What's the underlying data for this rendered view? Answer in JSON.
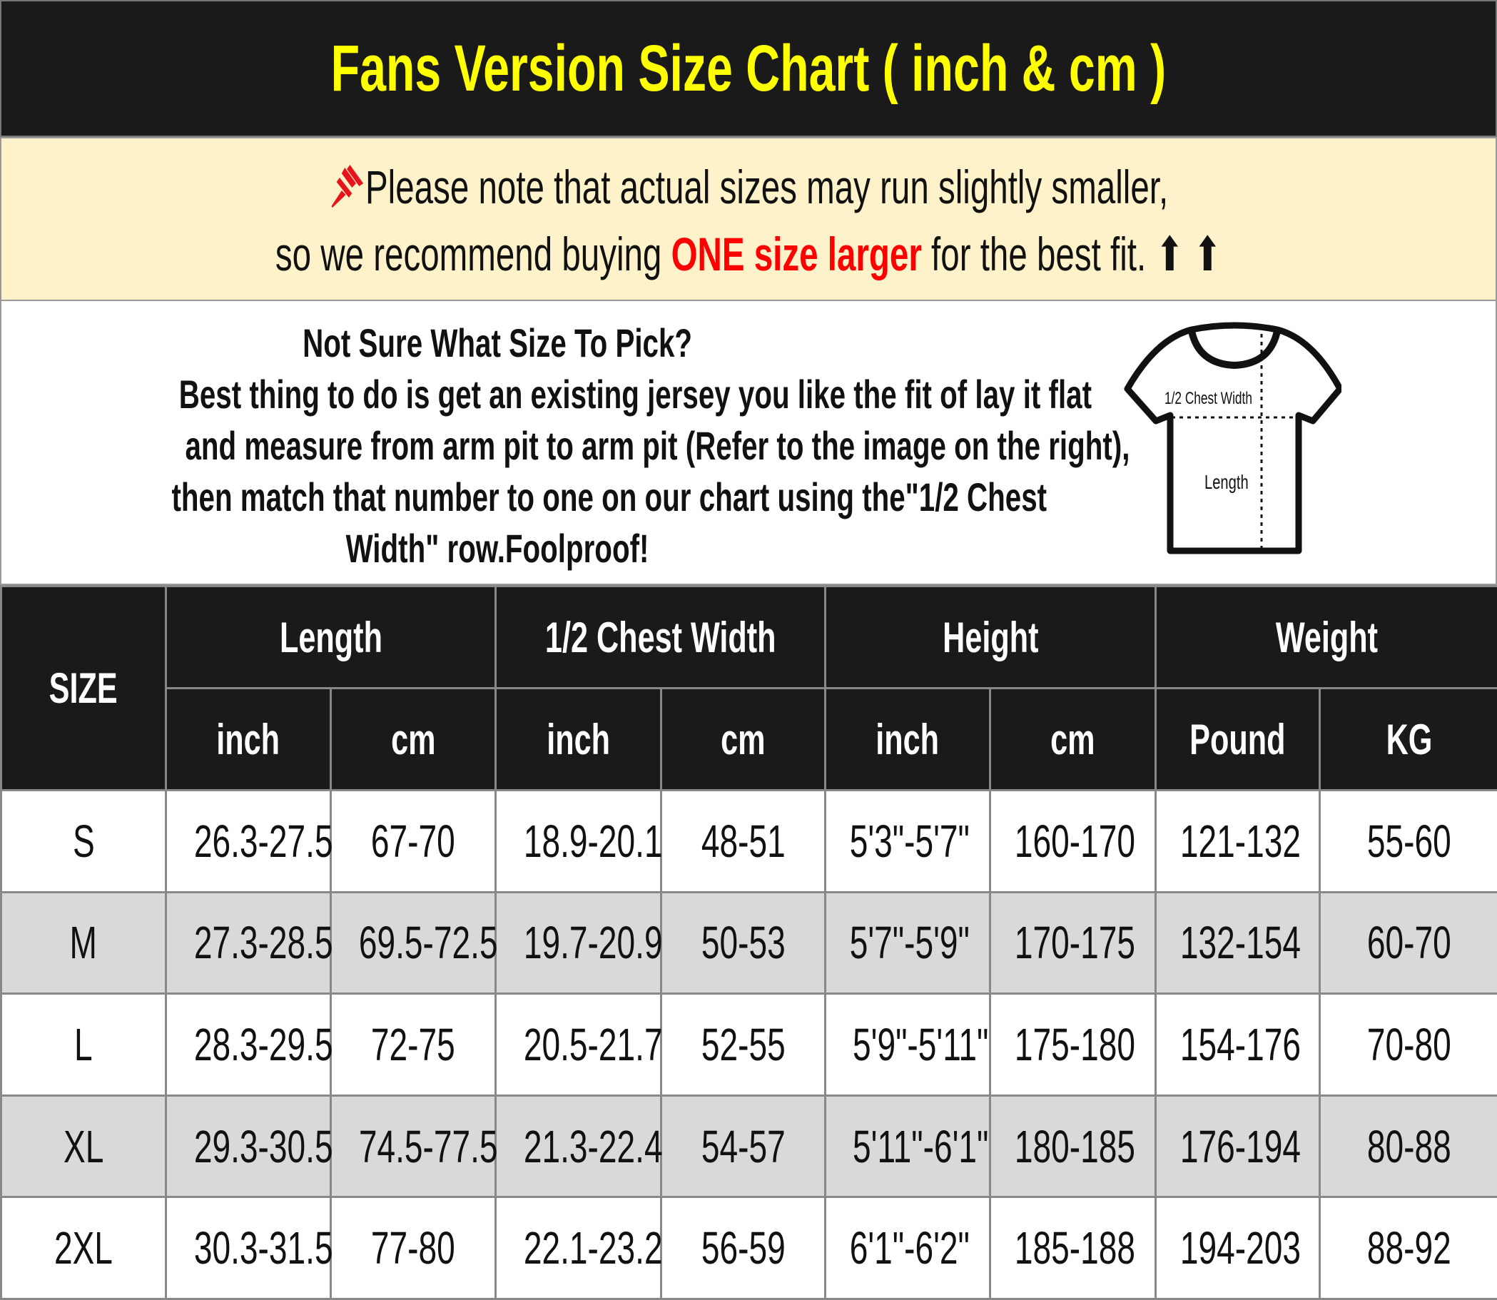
{
  "title": "Fans Version Size Chart ( inch & cm )",
  "note": {
    "icon": "pushpin-icon",
    "line1": "Please note that actual sizes may run slightly smaller,",
    "line2_pre": "so we recommend buying ",
    "line2_highlight": "ONE size larger",
    "line2_post": " for the best fit. ⬆ ⬆",
    "highlight_color": "#ff0000"
  },
  "info": {
    "heading": "Not Sure What Size To Pick?",
    "lines": [
      "Best thing to do is get an existing jersey you like the fit of lay it flat",
      "and measure from arm pit to arm pit (Refer to the image on the right),",
      "then match that number to one on our chart using the\"1/2 Chest",
      "Width\" row.Foolproof!"
    ],
    "diagram": {
      "chest_label": "1/2 Chest Width",
      "length_label": "Length"
    }
  },
  "table": {
    "size_header": "SIZE",
    "groups": [
      "Length",
      "1/2 Chest Width",
      "Height",
      "Weight"
    ],
    "units": [
      "inch",
      "cm",
      "inch",
      "cm",
      "inch",
      "cm",
      "Pound",
      "KG"
    ],
    "rows": [
      [
        "S",
        "26.3-27.5",
        "67-70",
        "18.9-20.1",
        "48-51",
        "5'3\"-5'7\"",
        "160-170",
        "121-132",
        "55-60"
      ],
      [
        "M",
        "27.3-28.5",
        "69.5-72.5",
        "19.7-20.9",
        "50-53",
        "5'7\"-5'9\"",
        "170-175",
        "132-154",
        "60-70"
      ],
      [
        "L",
        "28.3-29.5",
        "72-75",
        "20.5-21.7",
        "52-55",
        "5'9\"-5'11\"",
        "175-180",
        "154-176",
        "70-80"
      ],
      [
        "XL",
        "29.3-30.5",
        "74.5-77.5",
        "21.3-22.4",
        "54-57",
        "5'11\"-6'1\"",
        "180-185",
        "176-194",
        "80-88"
      ],
      [
        "2XL",
        "30.3-31.5",
        "77-80",
        "22.1-23.2",
        "56-59",
        "6'1\"-6'2\"",
        "185-188",
        "194-203",
        "88-92"
      ]
    ]
  },
  "colors": {
    "title_bg": "#1a1a1a",
    "title_text": "#ffff00",
    "note_bg": "#fdf2c9",
    "alt_row": "#d9d9d9"
  }
}
